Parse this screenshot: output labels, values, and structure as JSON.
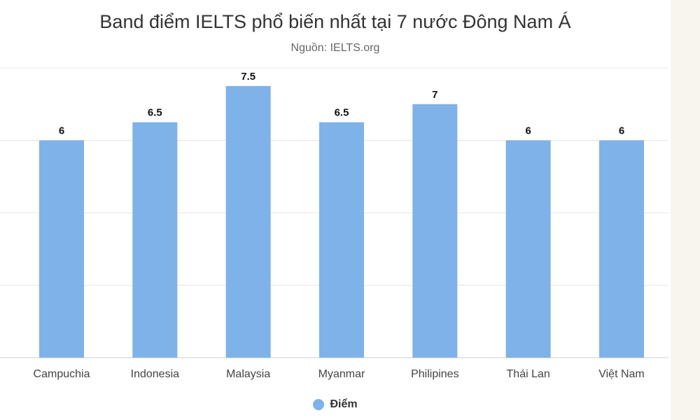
{
  "chart_data": {
    "type": "bar",
    "title": "Band điểm IELTS phổ biến nhất tại 7 nước Đông Nam Á",
    "subtitle": "Nguồn: IELTS.org",
    "categories": [
      "Campuchia",
      "Indonesia",
      "Malaysia",
      "Myanmar",
      "Philipines",
      "Thái Lan",
      "Việt Nam"
    ],
    "series": [
      {
        "name": "Điểm",
        "values": [
          6,
          6.5,
          7.5,
          6.5,
          7,
          6,
          6
        ],
        "color": "#7fb2e8"
      }
    ],
    "ylim": [
      0,
      8
    ],
    "grid": true,
    "legend": "bottom-center"
  }
}
